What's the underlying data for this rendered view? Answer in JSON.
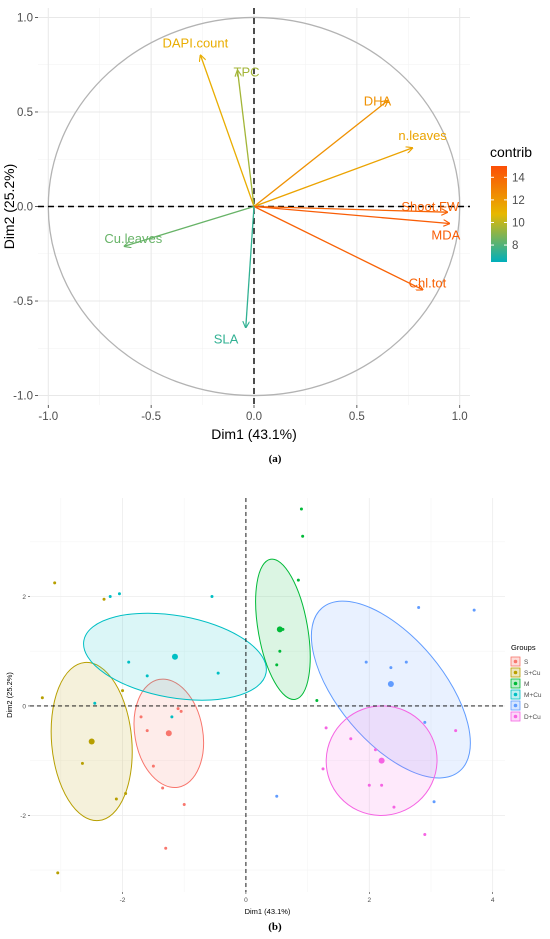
{
  "chart_data": [
    {
      "type": "pca-variables",
      "panel_label": "(a)",
      "xlabel": "Dim1 (43.1%)",
      "ylabel": "Dim2 (25.2%)",
      "xlim": [
        -1.05,
        1.05
      ],
      "ylim": [
        -1.05,
        1.05
      ],
      "x_ticks": [
        -1.0,
        -0.5,
        0.0,
        0.5,
        1.0
      ],
      "x_tick_labels": [
        "-1.0",
        "-0.5",
        "0.0",
        "0.5",
        "1.0"
      ],
      "y_ticks": [
        -1.0,
        -0.5,
        0.0,
        0.5,
        1.0
      ],
      "y_tick_labels": [
        "-1.0",
        "-0.5",
        "0.0",
        "0.5",
        "1.0"
      ],
      "grid": true,
      "legend": {
        "title": "contrib",
        "position": "right",
        "min": 6.5,
        "max": 15,
        "ticks": [
          8,
          10,
          12,
          14
        ],
        "tick_labels": [
          "8",
          "10",
          "12",
          "14"
        ],
        "colors": [
          "#00AFBB",
          "#E7B800",
          "#FC4E07"
        ]
      },
      "variables": [
        {
          "name": "DAPI.count",
          "x": -0.26,
          "y": 0.8,
          "contrib": 11.2
        },
        {
          "name": "TPC",
          "x": -0.08,
          "y": 0.72,
          "contrib": 9.5
        },
        {
          "name": "DHA",
          "x": 0.65,
          "y": 0.56,
          "contrib": 12.3
        },
        {
          "name": "n.leaves",
          "x": 0.77,
          "y": 0.31,
          "contrib": 11.6
        },
        {
          "name": "Shoot.FW",
          "x": 0.94,
          "y": -0.03,
          "contrib": 14.1
        },
        {
          "name": "MDA",
          "x": 0.95,
          "y": -0.09,
          "contrib": 14.4
        },
        {
          "name": "Chl.tot",
          "x": 0.82,
          "y": -0.44,
          "contrib": 14.2
        },
        {
          "name": "Cu.leaves",
          "x": -0.63,
          "y": -0.21,
          "contrib": 8.4
        },
        {
          "name": "SLA",
          "x": -0.04,
          "y": -0.64,
          "contrib": 7.4
        }
      ]
    },
    {
      "type": "scatter",
      "panel_label": "(b)",
      "xlabel": "Dim1 (43.1%)",
      "ylabel": "Dim2 (25.2%)",
      "xlim": [
        -3.5,
        4.2
      ],
      "ylim": [
        -3.4,
        3.8
      ],
      "x_ticks": [
        -2,
        0,
        2,
        4
      ],
      "x_tick_labels": [
        "-2",
        "0",
        "2",
        "4"
      ],
      "y_ticks": [
        -2,
        0,
        2
      ],
      "y_tick_labels": [
        "-2",
        "0",
        "2"
      ],
      "grid": true,
      "legend": {
        "title": "Groups",
        "position": "right"
      },
      "groups": [
        {
          "name": "S",
          "color": "#F8766D",
          "centroid": [
            -1.25,
            -0.5
          ],
          "ellipse": {
            "cx": -1.25,
            "cy": -0.5,
            "rx": 0.55,
            "ry": 1.0,
            "angle": 10
          },
          "points": [
            [
              -1.7,
              -0.2
            ],
            [
              -1.6,
              -0.45
            ],
            [
              -1.5,
              -1.1
            ],
            [
              -1.35,
              -1.5
            ],
            [
              -1.3,
              -2.6
            ],
            [
              -1.05,
              -0.1
            ],
            [
              -1.0,
              -1.8
            ],
            [
              -1.1,
              -0.05
            ]
          ]
        },
        {
          "name": "S+Cu",
          "color": "#B79F00",
          "centroid": [
            -2.5,
            -0.65
          ],
          "ellipse": {
            "cx": -2.5,
            "cy": -0.65,
            "rx": 0.65,
            "ry": 1.45,
            "angle": 5
          },
          "points": [
            [
              -3.1,
              2.25
            ],
            [
              -3.3,
              0.15
            ],
            [
              -2.65,
              -1.05
            ],
            [
              -2.1,
              -1.7
            ],
            [
              -1.95,
              -1.6
            ],
            [
              -2.0,
              0.28
            ],
            [
              -3.05,
              -3.05
            ],
            [
              -2.3,
              1.95
            ]
          ]
        },
        {
          "name": "M",
          "color": "#00BA38",
          "centroid": [
            0.55,
            1.4
          ],
          "ellipse": {
            "cx": 0.6,
            "cy": 1.4,
            "rx": 0.4,
            "ry": 1.3,
            "angle": 10
          },
          "points": [
            [
              0.9,
              3.6
            ],
            [
              0.92,
              3.1
            ],
            [
              0.85,
              2.3
            ],
            [
              0.55,
              1.0
            ],
            [
              0.5,
              0.75
            ],
            [
              1.15,
              0.1
            ],
            [
              0.6,
              1.4
            ]
          ]
        },
        {
          "name": "M+Cu",
          "color": "#00BFC4",
          "centroid": [
            -1.15,
            0.9
          ],
          "ellipse": {
            "cx": -1.15,
            "cy": 0.9,
            "rx": 1.5,
            "ry": 0.75,
            "angle": -10
          },
          "points": [
            [
              -2.2,
              2.0
            ],
            [
              -2.05,
              2.05
            ],
            [
              -0.55,
              2.0
            ],
            [
              -1.9,
              0.8
            ],
            [
              -1.6,
              0.55
            ],
            [
              -1.2,
              -0.2
            ],
            [
              -0.45,
              0.6
            ],
            [
              -2.45,
              0.05
            ]
          ]
        },
        {
          "name": "D",
          "color": "#619CFF",
          "centroid": [
            2.35,
            0.4
          ],
          "ellipse": {
            "cx": 2.35,
            "cy": 0.3,
            "rx": 0.85,
            "ry": 1.95,
            "angle": 40
          },
          "points": [
            [
              2.8,
              1.8
            ],
            [
              3.7,
              1.75
            ],
            [
              2.6,
              0.8
            ],
            [
              1.95,
              0.8
            ],
            [
              2.35,
              0.7
            ],
            [
              3.05,
              -1.75
            ],
            [
              0.5,
              -1.65
            ],
            [
              2.9,
              -0.3
            ]
          ]
        },
        {
          "name": "D+Cu",
          "color": "#F564E3",
          "centroid": [
            2.2,
            -1.0
          ],
          "ellipse": {
            "cx": 2.2,
            "cy": -1.0,
            "rx": 0.9,
            "ry": 1.0,
            "angle": 20
          },
          "points": [
            [
              1.7,
              -0.6
            ],
            [
              2.1,
              -0.8
            ],
            [
              2.2,
              -1.45
            ],
            [
              2.0,
              -1.45
            ],
            [
              2.4,
              -1.85
            ],
            [
              3.4,
              -0.45
            ],
            [
              2.9,
              -2.35
            ],
            [
              1.25,
              -1.15
            ],
            [
              1.3,
              -0.4
            ]
          ]
        }
      ]
    }
  ]
}
